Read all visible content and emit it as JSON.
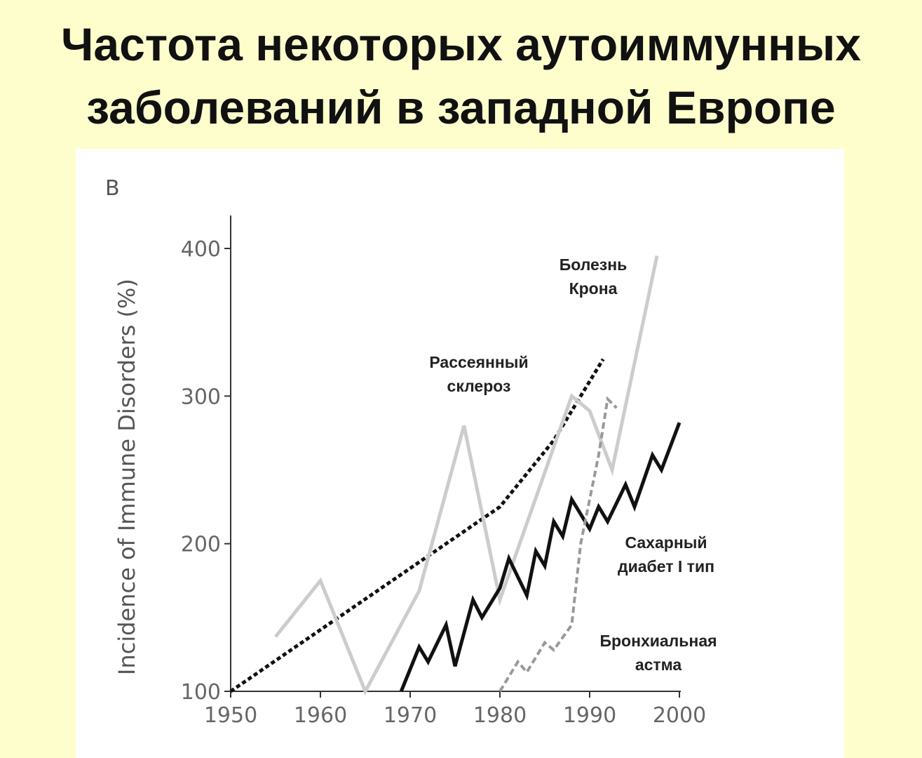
{
  "slide": {
    "title_line1": "Частота некоторых аутоиммунных",
    "title_line2": "заболеваний в западной Европе"
  },
  "chart_data": {
    "type": "line",
    "panel_label": "B",
    "xlabel": "",
    "ylabel": "Incidence of Immune Disorders (%)",
    "xlim": [
      1950,
      2000
    ],
    "ylim": [
      100,
      420
    ],
    "xticks": [
      1950,
      1960,
      1970,
      1980,
      1990,
      2000
    ],
    "yticks": [
      100,
      200,
      300,
      400
    ],
    "grid": false,
    "series": [
      {
        "name": "Рассеянный склероз",
        "label_lines": [
          "Рассеянный",
          "склероз"
        ],
        "color": "#111111",
        "style": "dotted-heavy",
        "points": [
          [
            1950,
            100
          ],
          [
            1980,
            225
          ],
          [
            1982,
            240
          ],
          [
            1984,
            255
          ],
          [
            1986,
            270
          ],
          [
            1988,
            290
          ],
          [
            1990,
            310
          ],
          [
            1991.5,
            325
          ]
        ]
      },
      {
        "name": "Болезнь Крона",
        "label_lines": [
          "Болезнь",
          "Крона"
        ],
        "color": "#cccccc",
        "style": "solid",
        "points": [
          [
            1955,
            137
          ],
          [
            1960,
            175
          ],
          [
            1965,
            100
          ],
          [
            1971,
            168
          ],
          [
            1976,
            280
          ],
          [
            1980,
            162
          ],
          [
            1988,
            300
          ],
          [
            1990,
            290
          ],
          [
            1992.5,
            250
          ],
          [
            1997.5,
            395
          ]
        ]
      },
      {
        "name": "Сахарный диабет I тип",
        "label_lines": [
          "Сахарный",
          "диабет I тип"
        ],
        "color": "#111111",
        "style": "solid",
        "points": [
          [
            1969,
            100
          ],
          [
            1971,
            130
          ],
          [
            1972,
            120
          ],
          [
            1974,
            145
          ],
          [
            1975,
            117
          ],
          [
            1977,
            162
          ],
          [
            1978,
            150
          ],
          [
            1980,
            170
          ],
          [
            1981,
            190
          ],
          [
            1983,
            165
          ],
          [
            1984,
            195
          ],
          [
            1985,
            185
          ],
          [
            1986,
            215
          ],
          [
            1987,
            205
          ],
          [
            1988,
            230
          ],
          [
            1989,
            220
          ],
          [
            1990,
            210
          ],
          [
            1991,
            225
          ],
          [
            1992,
            215
          ],
          [
            1994,
            240
          ],
          [
            1995,
            225
          ],
          [
            1997,
            260
          ],
          [
            1998,
            250
          ],
          [
            2000,
            282
          ]
        ]
      },
      {
        "name": "Бронхиальная астма",
        "label_lines": [
          "Бронхиальная",
          "астма"
        ],
        "color": "#999999",
        "style": "dashed",
        "points": [
          [
            1980,
            100
          ],
          [
            1982,
            120
          ],
          [
            1983,
            113
          ],
          [
            1985,
            133
          ],
          [
            1986,
            128
          ],
          [
            1988,
            145
          ],
          [
            1989,
            200
          ],
          [
            1990,
            230
          ],
          [
            1991,
            260
          ],
          [
            1992,
            298
          ],
          [
            1993,
            292
          ]
        ]
      }
    ]
  }
}
